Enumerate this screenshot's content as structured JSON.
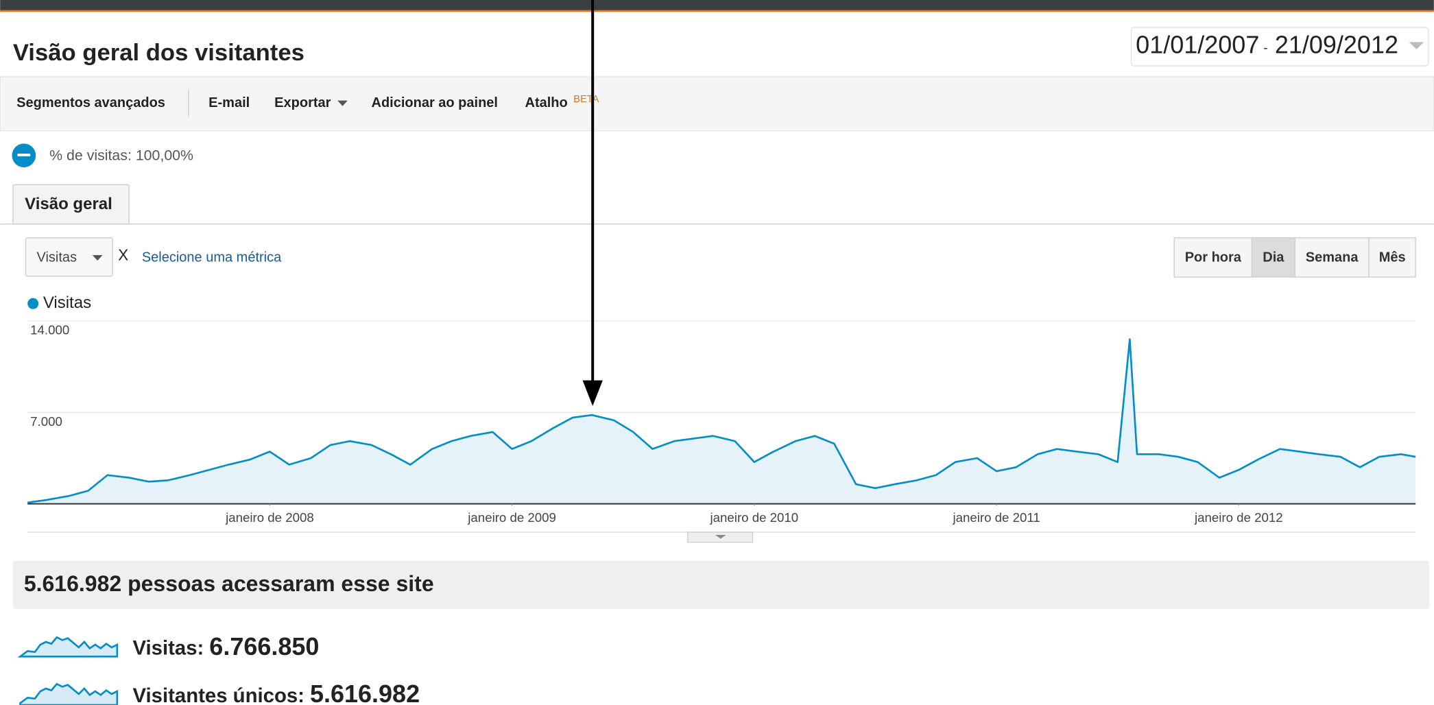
{
  "header": {
    "title": "Visão geral dos visitantes",
    "date_start": "01/01/2007",
    "date_separator": "-",
    "date_end": "21/09/2012"
  },
  "toolbar": {
    "items": [
      "Segmentos avançados",
      "E-mail",
      "Exportar",
      "Adicionar ao painel",
      "Atalho"
    ],
    "badge": "BETA"
  },
  "segment": "% de visitas: 100,00%",
  "tab": "Visão geral",
  "metric_selector": {
    "metric": "Visitas",
    "close": "X",
    "link": "Selecione uma métrica"
  },
  "intervals": [
    "Por hora",
    "Dia",
    "Semana",
    "Mês"
  ],
  "selected_interval": 1,
  "chart_data": {
    "type": "line",
    "x": [
      2007.0,
      2007.08,
      2007.17,
      2007.25,
      2007.33,
      2007.42,
      2007.5,
      2007.58,
      2007.67,
      2007.75,
      2007.83,
      2007.92,
      2008.0,
      2008.08,
      2008.17,
      2008.25,
      2008.33,
      2008.42,
      2008.5,
      2008.58,
      2008.67,
      2008.75,
      2008.83,
      2008.92,
      2009.0,
      2009.08,
      2009.17,
      2009.25,
      2009.33,
      2009.42,
      2009.5,
      2009.58,
      2009.67,
      2009.75,
      2009.83,
      2009.92,
      2010.0,
      2010.08,
      2010.17,
      2010.25,
      2010.33,
      2010.42,
      2010.5,
      2010.58,
      2010.67,
      2010.75,
      2010.83,
      2010.92,
      2011.0,
      2011.08,
      2011.17,
      2011.25,
      2011.33,
      2011.42,
      2011.5,
      2011.55,
      2011.58,
      2011.67,
      2011.75,
      2011.83,
      2011.92,
      2012.0,
      2012.08,
      2012.17,
      2012.25,
      2012.33,
      2012.42,
      2012.5,
      2012.58,
      2012.67,
      2012.73
    ],
    "series": [
      {
        "name": "Visitas",
        "color": "#058dc7",
        "values": [
          100,
          300,
          600,
          1000,
          2200,
          2000,
          1700,
          1800,
          2200,
          2600,
          3000,
          3400,
          4000,
          3000,
          3500,
          4500,
          4800,
          4500,
          3800,
          3000,
          4200,
          4800,
          5200,
          5500,
          4200,
          4800,
          5800,
          6600,
          6800,
          6400,
          5500,
          4200,
          4800,
          5000,
          5200,
          4800,
          3200,
          4000,
          4800,
          5200,
          4600,
          1500,
          1200,
          1500,
          1800,
          2200,
          3200,
          3500,
          2500,
          2800,
          3800,
          4200,
          4000,
          3800,
          3200,
          12600,
          3800,
          3800,
          3600,
          3200,
          2000,
          2600,
          3400,
          4200,
          4000,
          3800,
          3600,
          2800,
          3600,
          3800,
          3600
        ]
      }
    ],
    "xlim": [
      2007,
      2012.73
    ],
    "xticks": [
      {
        "value": 2008,
        "label": "janeiro de 2008"
      },
      {
        "value": 2009,
        "label": "janeiro de 2009"
      },
      {
        "value": 2010,
        "label": "janeiro de 2010"
      },
      {
        "value": 2011,
        "label": "janeiro de 2011"
      },
      {
        "value": 2012,
        "label": "janeiro de 2012"
      }
    ],
    "ylim": [
      0,
      14000
    ],
    "yticks": [
      {
        "value": 7000,
        "label": "7.000"
      },
      {
        "value": 14000,
        "label": "14.000"
      }
    ],
    "grid": true
  },
  "summary": {
    "headline": "5.616.982 pessoas acessaram esse site",
    "metrics": [
      {
        "label": "Visitas:",
        "value": "6.766.850"
      },
      {
        "label": "Visitantes únicos:",
        "value": "5.616.982"
      }
    ]
  }
}
